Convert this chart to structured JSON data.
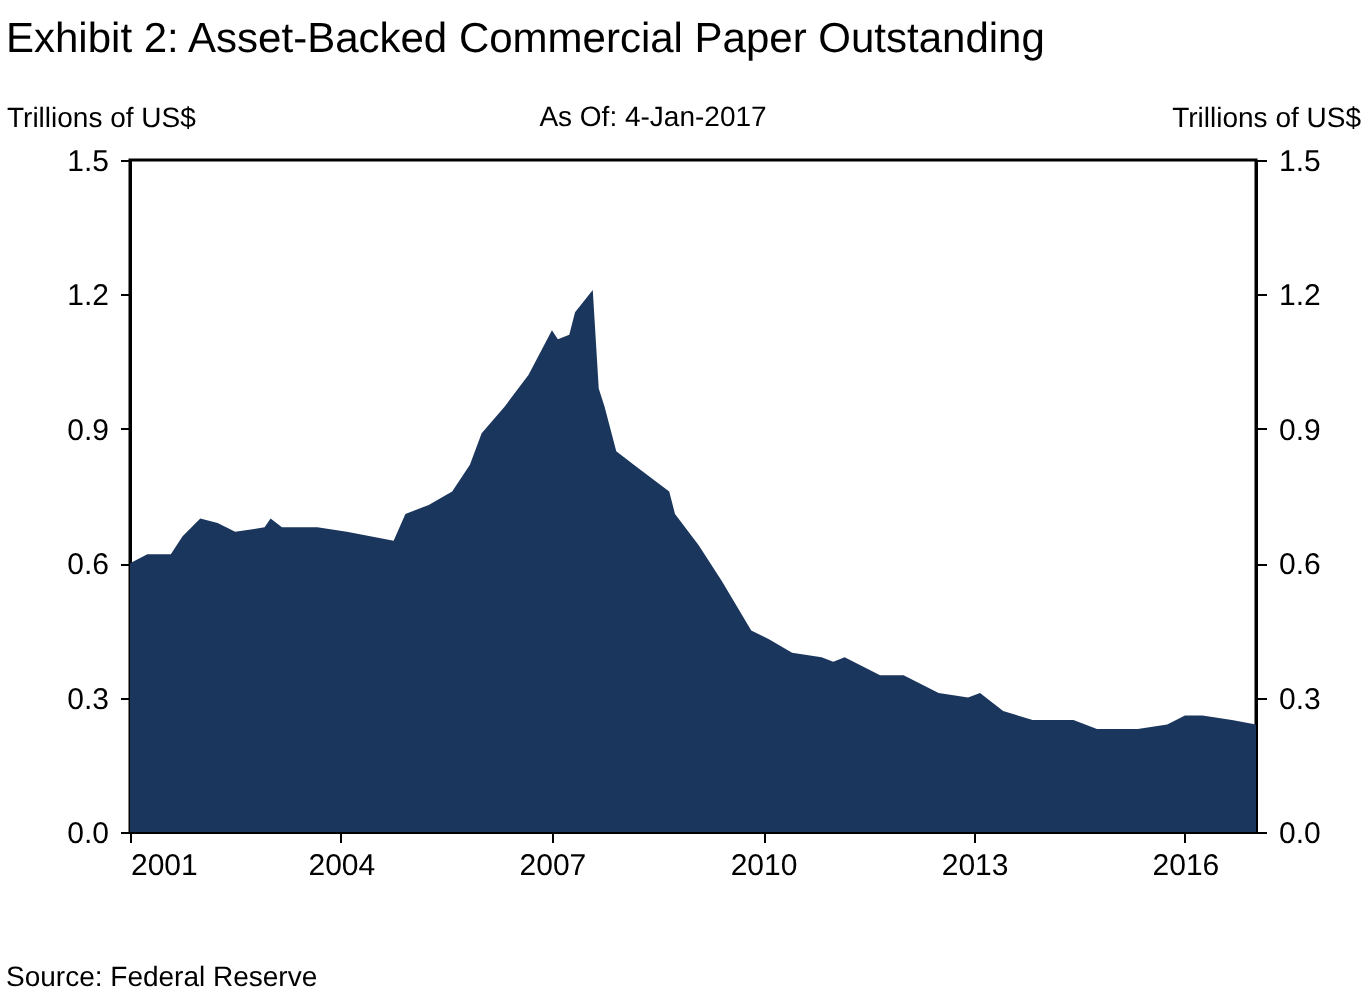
{
  "chart_data": {
    "type": "area",
    "title": "Exhibit 2: Asset-Backed Commercial Paper Outstanding",
    "subtitle": "As Of: 4-Jan-2017",
    "ylabel": "Trillions of US$",
    "y2label": "Trillions of US$",
    "annotations": [
      "Source: Federal Reserve"
    ],
    "x": [
      "2001-01",
      "2001-04",
      "2001-08",
      "2001-10",
      "2002-01",
      "2002-04",
      "2002-07",
      "2002-12",
      "2003-01",
      "2003-03",
      "2003-09",
      "2004-02",
      "2004-10",
      "2004-12",
      "2005-04",
      "2005-08",
      "2005-11",
      "2006-01",
      "2006-05",
      "2006-09",
      "2007-01",
      "2007-02",
      "2007-04",
      "2007-05",
      "2007-08",
      "2007-09",
      "2007-10",
      "2007-12",
      "2008-03",
      "2008-07",
      "2008-09",
      "2008-10",
      "2009-02",
      "2009-06",
      "2009-11",
      "2010-02",
      "2010-06",
      "2010-11",
      "2011-01",
      "2011-03",
      "2011-09",
      "2012-01",
      "2012-07",
      "2012-12",
      "2013-02",
      "2013-06",
      "2013-11",
      "2014-06",
      "2014-10",
      "2015-05",
      "2015-10",
      "2016-01",
      "2016-04",
      "2016-09",
      "2017-01-04"
    ],
    "series": [
      {
        "color": "#1b365d",
        "values": [
          0.6,
          0.62,
          0.62,
          0.66,
          0.7,
          0.69,
          0.67,
          0.68,
          0.7,
          0.68,
          0.68,
          0.67,
          0.65,
          0.71,
          0.73,
          0.76,
          0.82,
          0.89,
          0.95,
          1.02,
          1.12,
          1.1,
          1.11,
          1.16,
          1.21,
          0.99,
          0.95,
          0.85,
          0.82,
          0.78,
          0.76,
          0.71,
          0.64,
          0.56,
          0.45,
          0.43,
          0.4,
          0.39,
          0.38,
          0.39,
          0.35,
          0.35,
          0.31,
          0.3,
          0.31,
          0.27,
          0.25,
          0.25,
          0.23,
          0.23,
          0.24,
          0.26,
          0.26,
          0.25,
          0.24
        ]
      }
    ],
    "xlim": [
      "2001-01-01",
      "2017-01-04"
    ],
    "xticks": [
      "2001",
      "2004",
      "2007",
      "2010",
      "2013",
      "2016"
    ],
    "ylim": [
      0,
      1.5
    ],
    "yticks": [
      {
        "value": 0,
        "label": "0.0"
      },
      0.3,
      0.6,
      0.9,
      1.2,
      1.5
    ],
    "y2lim": [
      0,
      1.5
    ],
    "y2ticks": [
      {
        "value": 0,
        "label": "0.0"
      },
      0.3,
      0.6,
      0.9,
      1.2,
      1.5
    ],
    "grid": false
  }
}
